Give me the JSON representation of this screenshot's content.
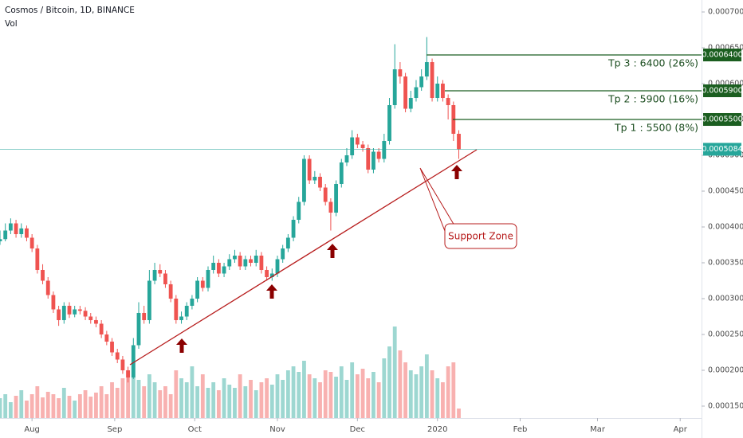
{
  "chart_data": {
    "type": "candlestick",
    "title": "Cosmos / Bitcoin, 1D, BINANCE",
    "volume_label": "Vol",
    "x": [
      0,
      2,
      4,
      6,
      8,
      10,
      12,
      14,
      16,
      18,
      20,
      22,
      24,
      26,
      28,
      30,
      32,
      34,
      36,
      38,
      40,
      42,
      44,
      46,
      48,
      50,
      52,
      54,
      56,
      58,
      60,
      62,
      64,
      66,
      68,
      70,
      72,
      74,
      76,
      78,
      80,
      82,
      84,
      86,
      88,
      90,
      92,
      94,
      96,
      98,
      100,
      102,
      104,
      106,
      108,
      110,
      112,
      114,
      116,
      118,
      120,
      122,
      124,
      126,
      128,
      130,
      132,
      134,
      136,
      138,
      140,
      142,
      144,
      146,
      148,
      150,
      152,
      154,
      156,
      158,
      160,
      162,
      164,
      166,
      168,
      170,
      172
    ],
    "open": [
      0.00038,
      0.000383,
      0.000395,
      0.000405,
      0.00039,
      0.000398,
      0.000385,
      0.00037,
      0.00034,
      0.000325,
      0.000305,
      0.000285,
      0.00027,
      0.00029,
      0.000278,
      0.000285,
      0.000283,
      0.000275,
      0.00027,
      0.000265,
      0.00025,
      0.00024,
      0.000225,
      0.000215,
      0.0002,
      0.00019,
      0.000235,
      0.00028,
      0.00027,
      0.000325,
      0.00034,
      0.000335,
      0.00032,
      0.0003,
      0.00027,
      0.000275,
      0.00029,
      0.0003,
      0.000325,
      0.000315,
      0.00034,
      0.00035,
      0.000335,
      0.000345,
      0.000355,
      0.00036,
      0.000345,
      0.000355,
      0.00035,
      0.00036,
      0.00034,
      0.00033,
      0.000335,
      0.000355,
      0.00037,
      0.000385,
      0.00041,
      0.000435,
      0.000495,
      0.000465,
      0.00047,
      0.000455,
      0.000435,
      0.00042,
      0.00046,
      0.00049,
      0.0005,
      0.000525,
      0.000515,
      0.00051,
      0.00048,
      0.000505,
      0.000495,
      0.00052,
      0.00057,
      0.00062,
      0.00061,
      0.000565,
      0.00058,
      0.000595,
      0.00061,
      0.00063,
      0.00058,
      0.0006,
      0.00058,
      0.00057,
      0.00053
    ],
    "high": [
      0.000395,
      0.000405,
      0.000412,
      0.00041,
      0.000405,
      0.000402,
      0.00039,
      0.000375,
      0.000348,
      0.00033,
      0.00031,
      0.00029,
      0.000295,
      0.000295,
      0.00029,
      0.00029,
      0.000288,
      0.00028,
      0.000275,
      0.00027,
      0.000255,
      0.000245,
      0.00023,
      0.00022,
      0.000205,
      0.000245,
      0.000295,
      0.00029,
      0.00034,
      0.00035,
      0.000348,
      0.00034,
      0.000325,
      0.000305,
      0.000282,
      0.000295,
      0.000305,
      0.00033,
      0.00033,
      0.000345,
      0.00036,
      0.000355,
      0.00035,
      0.000362,
      0.000368,
      0.000365,
      0.00036,
      0.00036,
      0.000368,
      0.000365,
      0.000345,
      0.000342,
      0.00036,
      0.000375,
      0.00039,
      0.000415,
      0.000442,
      0.0005,
      0.0005,
      0.000478,
      0.000475,
      0.00046,
      0.00044,
      0.000465,
      0.000495,
      0.00051,
      0.000535,
      0.00053,
      0.00052,
      0.000515,
      0.00051,
      0.00051,
      0.00053,
      0.00058,
      0.000655,
      0.00063,
      0.000615,
      0.00059,
      0.000605,
      0.00062,
      0.000665,
      0.000635,
      0.00061,
      0.000605,
      0.000585,
      0.000575,
      0.000535
    ],
    "low": [
      0.000375,
      0.00038,
      0.00039,
      0.000385,
      0.000385,
      0.00038,
      0.000365,
      0.000335,
      0.00032,
      0.0003,
      0.00028,
      0.000262,
      0.000265,
      0.000273,
      0.000274,
      0.000278,
      0.00027,
      0.000265,
      0.00026,
      0.000245,
      0.000235,
      0.00022,
      0.00021,
      0.000195,
      0.000183,
      0.000188,
      0.00023,
      0.000265,
      0.000265,
      0.00032,
      0.00033,
      0.000315,
      0.000295,
      0.000265,
      0.000265,
      0.00027,
      0.000285,
      0.000295,
      0.00031,
      0.00031,
      0.000335,
      0.00033,
      0.00033,
      0.00034,
      0.00035,
      0.00034,
      0.00034,
      0.000345,
      0.000345,
      0.000335,
      0.000325,
      0.000325,
      0.00033,
      0.00035,
      0.000365,
      0.00038,
      0.000405,
      0.00043,
      0.00046,
      0.00046,
      0.00045,
      0.00043,
      0.000395,
      0.000415,
      0.000455,
      0.000485,
      0.000495,
      0.00051,
      0.000505,
      0.000475,
      0.000475,
      0.00049,
      0.00049,
      0.000515,
      0.000565,
      0.0006,
      0.00056,
      0.00056,
      0.000575,
      0.00059,
      0.000605,
      0.000575,
      0.000575,
      0.000575,
      0.00055,
      0.00052,
      0.000495
    ],
    "close": [
      0.000383,
      0.000395,
      0.000405,
      0.00039,
      0.000398,
      0.000385,
      0.00037,
      0.00034,
      0.000325,
      0.000305,
      0.000285,
      0.00027,
      0.00029,
      0.000278,
      0.000285,
      0.000283,
      0.000275,
      0.00027,
      0.000265,
      0.00025,
      0.00024,
      0.000225,
      0.000215,
      0.0002,
      0.00019,
      0.000235,
      0.00028,
      0.00027,
      0.000325,
      0.00034,
      0.000335,
      0.00032,
      0.0003,
      0.00027,
      0.000275,
      0.00029,
      0.0003,
      0.000325,
      0.000315,
      0.00034,
      0.00035,
      0.000335,
      0.000345,
      0.000355,
      0.00036,
      0.000345,
      0.000355,
      0.00035,
      0.00036,
      0.00034,
      0.00033,
      0.000335,
      0.000355,
      0.00037,
      0.000385,
      0.00041,
      0.000435,
      0.000495,
      0.000465,
      0.00047,
      0.000455,
      0.000435,
      0.00042,
      0.00046,
      0.00049,
      0.0005,
      0.000525,
      0.000515,
      0.00051,
      0.00048,
      0.000505,
      0.000495,
      0.00052,
      0.00057,
      0.00062,
      0.00061,
      0.000565,
      0.00058,
      0.000595,
      0.00061,
      0.00063,
      0.00058,
      0.0006,
      0.00058,
      0.00057,
      0.00053,
      0.0005084
    ],
    "volume": [
      25,
      30,
      20,
      28,
      35,
      22,
      30,
      40,
      26,
      33,
      30,
      25,
      38,
      28,
      22,
      30,
      35,
      27,
      32,
      40,
      30,
      45,
      38,
      50,
      60,
      70,
      48,
      40,
      55,
      45,
      35,
      40,
      30,
      60,
      50,
      45,
      65,
      40,
      55,
      38,
      45,
      35,
      50,
      42,
      38,
      55,
      40,
      48,
      35,
      45,
      50,
      42,
      55,
      48,
      60,
      65,
      58,
      72,
      55,
      50,
      45,
      60,
      58,
      52,
      65,
      48,
      70,
      55,
      62,
      50,
      58,
      45,
      75,
      90,
      115,
      85,
      70,
      60,
      55,
      65,
      80,
      60,
      50,
      45,
      65,
      70,
      12
    ],
    "up_color": "#26a69a",
    "down_color": "#ef5350",
    "xlim": [
      0,
      263
    ],
    "xticks": [
      {
        "value": 12,
        "label": "Aug"
      },
      {
        "value": 43,
        "label": "Sep"
      },
      {
        "value": 73,
        "label": "Oct"
      },
      {
        "value": 104,
        "label": "Nov"
      },
      {
        "value": 134,
        "label": "Dec"
      },
      {
        "value": 164,
        "label": "2020"
      },
      {
        "value": 195,
        "label": "Feb"
      },
      {
        "value": 224,
        "label": "Mar"
      },
      {
        "value": 255,
        "label": "Apr"
      }
    ],
    "ylim": [
      0.0001333,
      0.0007167
    ],
    "yticks": [
      {
        "value": 0.00015,
        "label": "0.0001500"
      },
      {
        "value": 0.0002,
        "label": "0.0002000"
      },
      {
        "value": 0.00025,
        "label": "0.0002500"
      },
      {
        "value": 0.0003,
        "label": "0.0003000"
      },
      {
        "value": 0.00035,
        "label": "0.0003500"
      },
      {
        "value": 0.0004,
        "label": "0.0004000"
      },
      {
        "value": 0.00045,
        "label": "0.0004500"
      },
      {
        "value": 0.0005,
        "label": "0.0005000"
      },
      {
        "value": 0.00055,
        "label": "0.0005500"
      },
      {
        "value": 0.0006,
        "label": "0.0006000"
      },
      {
        "value": 0.00065,
        "label": "0.0006500"
      },
      {
        "value": 0.0007,
        "label": "0.0007000"
      }
    ],
    "grid": false,
    "targets": [
      {
        "text": "Tp 3 : 6400 (26%)",
        "price": {
          "value": 0.00064,
          "label": "0.0006400"
        },
        "color": "#1b5e20"
      },
      {
        "text": "Tp 2 : 5900 (16%)",
        "price": {
          "value": 0.00059,
          "label": "0.0005900"
        },
        "color": "#1b5e20"
      },
      {
        "text": "Tp 1 : 5500 (8%)",
        "price": {
          "value": 0.00055,
          "label": "0.0005500"
        },
        "color": "#1b5e20"
      }
    ],
    "current_price": {
      "value": 0.0005084,
      "label": "0.0005084"
    },
    "support_label": "Support Zone"
  }
}
